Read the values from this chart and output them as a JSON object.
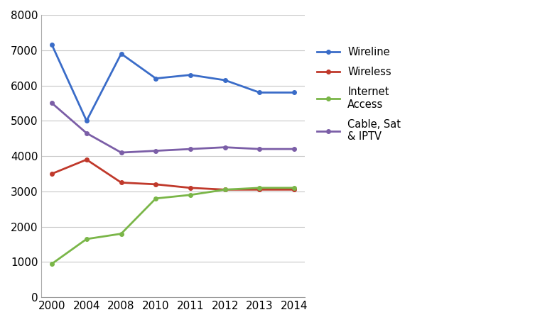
{
  "years": [
    2000,
    2004,
    2008,
    2010,
    2011,
    2012,
    2013,
    2014
  ],
  "year_labels": [
    "2000",
    "2004",
    "2008",
    "2010",
    "2011",
    "2012",
    "2013",
    "2014"
  ],
  "wireline": [
    7150,
    5000,
    6900,
    6200,
    6300,
    6150,
    5800,
    5800
  ],
  "wireless": [
    3500,
    3900,
    3250,
    3200,
    3100,
    3050,
    3050,
    3050
  ],
  "internet_access": [
    950,
    1650,
    1800,
    2800,
    2900,
    3050,
    3100,
    3100
  ],
  "cable_sat_iptv": [
    5500,
    4650,
    4100,
    4150,
    4200,
    4250,
    4200,
    4200
  ],
  "wireline_color": "#3a6cc8",
  "wireless_color": "#c0392b",
  "internet_access_color": "#7ab648",
  "cable_sat_iptv_color": "#7b5ea7",
  "ylim": [
    0,
    8000
  ],
  "yticks": [
    0,
    1000,
    2000,
    3000,
    4000,
    5000,
    6000,
    7000,
    8000
  ],
  "legend_labels": [
    "Wireline",
    "Wireless",
    "Internet\nAccess",
    "Cable, Sat\n& IPTV"
  ],
  "figure_width": 7.53,
  "figure_height": 4.54,
  "dpi": 100
}
